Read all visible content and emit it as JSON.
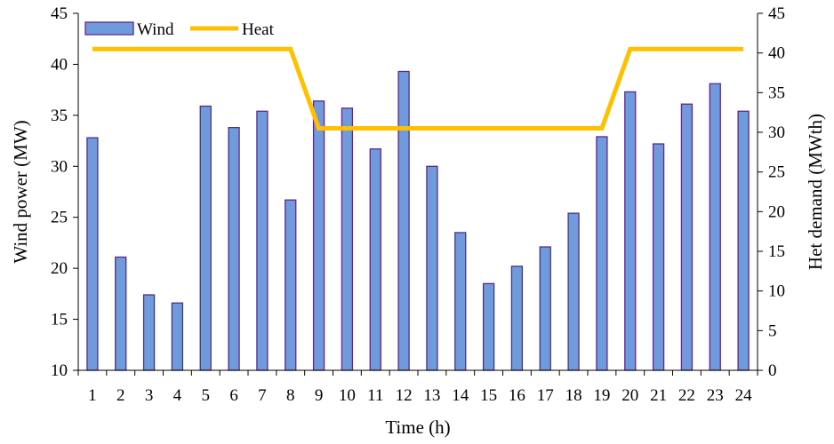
{
  "chart_data": {
    "type": "bar",
    "xlabel": "Time (h)",
    "ylabel": "Wind power (MW)",
    "y2label": "Het demand (MWth)",
    "categories": [
      "1",
      "2",
      "3",
      "4",
      "5",
      "6",
      "7",
      "8",
      "9",
      "10",
      "11",
      "12",
      "13",
      "14",
      "15",
      "16",
      "17",
      "18",
      "19",
      "20",
      "21",
      "22",
      "23",
      "24"
    ],
    "ylim": [
      10,
      45
    ],
    "yticks": [
      10,
      15,
      20,
      25,
      30,
      35,
      40,
      45
    ],
    "y2lim": [
      0,
      45
    ],
    "y2ticks": [
      0,
      5,
      10,
      15,
      20,
      25,
      30,
      35,
      40,
      45
    ],
    "legend_position": "top-left",
    "grid": false,
    "series": [
      {
        "name": "Wind",
        "type": "bar",
        "axis": "left",
        "color": "#6f9bdc",
        "edge_color": "#5a2a8a",
        "values": [
          32.8,
          21.1,
          17.4,
          16.6,
          35.9,
          33.8,
          35.4,
          26.7,
          36.4,
          35.7,
          31.7,
          39.3,
          30.0,
          23.5,
          18.5,
          20.2,
          22.1,
          25.4,
          32.9,
          37.3,
          32.2,
          36.1,
          38.1,
          35.4
        ]
      },
      {
        "name": "Heat",
        "type": "line",
        "axis": "right",
        "color": "#ffc000",
        "values": [
          40.5,
          40.5,
          40.5,
          40.5,
          40.5,
          40.5,
          40.5,
          40.5,
          30.5,
          30.5,
          30.5,
          30.5,
          30.5,
          30.5,
          30.5,
          30.5,
          30.5,
          30.5,
          30.5,
          40.5,
          40.5,
          40.5,
          40.5,
          40.5
        ]
      }
    ]
  }
}
